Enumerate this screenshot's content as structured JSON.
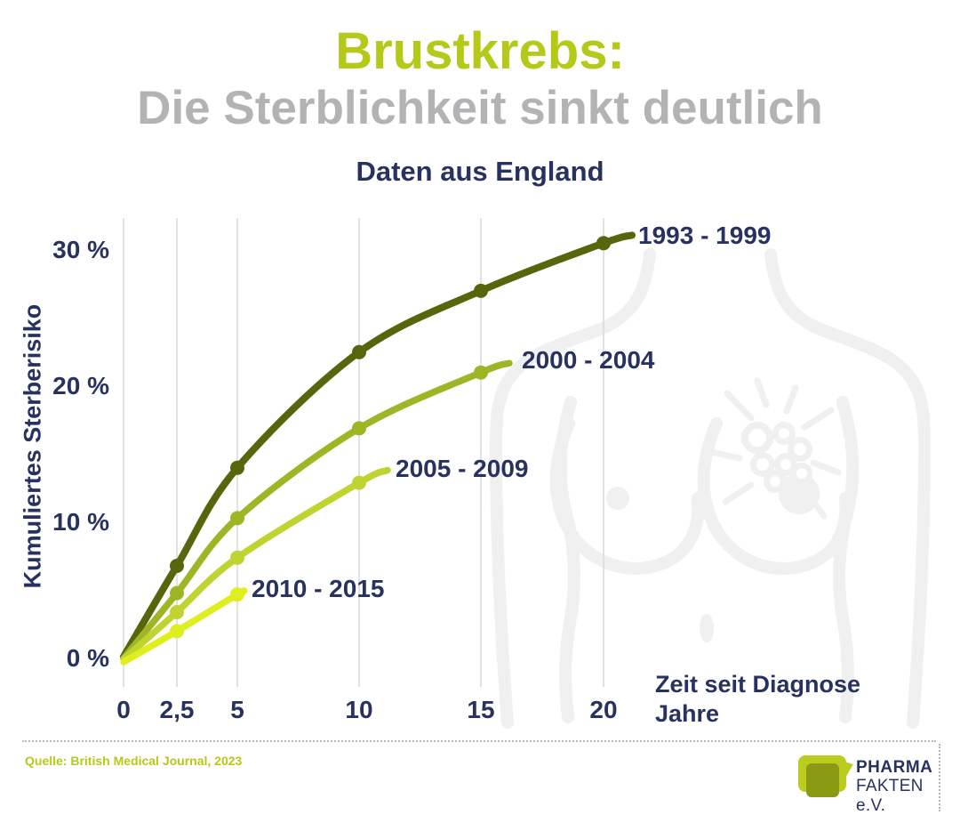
{
  "header": {
    "title_line1": "Brustkrebs:",
    "title_line2": "Die Sterblichkeit sinkt deutlich",
    "subtitle": "Daten aus England"
  },
  "colors": {
    "accent_green": "#b5c918",
    "title_gray": "#b1b3b5",
    "navy": "#283261",
    "gridline": "#d9d9d9",
    "watermark_gray": "#f0f0f1",
    "series_1993_1999": "#57660d",
    "series_2000_2004": "#9eb626",
    "series_2005_2009": "#c0d431",
    "series_2010_2015": "#dfee1f"
  },
  "chart_data": {
    "type": "line",
    "title": "Daten aus England",
    "xlabel": "Zeit seit Diagnose Jahre",
    "ylabel": "Kumuliertes Sterberisiko",
    "x_ticks": [
      "0",
      "2,5",
      "5",
      "10",
      "15",
      "20"
    ],
    "x_tick_values": [
      0,
      2.5,
      5,
      10,
      15,
      20
    ],
    "y_ticks": [
      "0 %",
      "10 %",
      "20 %",
      "30 %"
    ],
    "y_tick_values": [
      0,
      10,
      20,
      30
    ],
    "xlim": [
      0,
      22
    ],
    "ylim": [
      0,
      33
    ],
    "grid": "vertical-only",
    "legend_position": "end-of-line-labels",
    "series": [
      {
        "name": "1993 - 1999",
        "color": "#57660d",
        "x": [
          0,
          2.5,
          5,
          10,
          15,
          20
        ],
        "values": [
          0,
          6.8,
          14.0,
          22.5,
          27.0,
          30.5
        ]
      },
      {
        "name": "2000 - 2004",
        "color": "#9eb626",
        "x": [
          0,
          2.5,
          5,
          10,
          15
        ],
        "values": [
          0,
          4.8,
          10.3,
          16.9,
          21.0
        ]
      },
      {
        "name": "2005 - 2009",
        "color": "#c0d431",
        "x": [
          0,
          2.5,
          5,
          10
        ],
        "values": [
          0,
          3.4,
          7.4,
          12.9
        ]
      },
      {
        "name": "2010 - 2015",
        "color": "#dfee1f",
        "x": [
          0,
          2.5,
          5
        ],
        "values": [
          0,
          2.0,
          4.7
        ]
      }
    ]
  },
  "axis": {
    "x_label_line1": "Zeit seit Diagnose",
    "x_label_line2": "Jahre"
  },
  "footer": {
    "source": "Quelle: British Medical Journal, 2023",
    "logo_line1": "PHARMA",
    "logo_line2": "FAKTEN e.V."
  }
}
